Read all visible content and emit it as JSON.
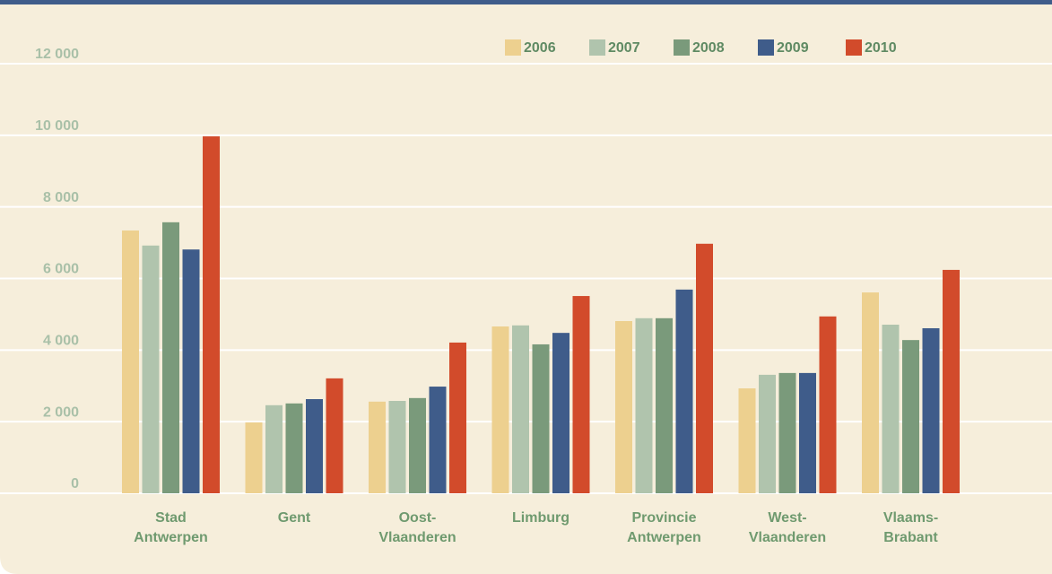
{
  "chart_data": {
    "type": "bar",
    "categories": [
      [
        "Stad",
        "Antwerpen"
      ],
      [
        "Gent"
      ],
      [
        "Oost-",
        "Vlaanderen"
      ],
      [
        "Limburg"
      ],
      [
        "Provincie",
        "Antwerpen"
      ],
      [
        "West-",
        "Vlaanderen"
      ],
      [
        "Vlaams-",
        "Brabant"
      ]
    ],
    "series": [
      {
        "name": "2006",
        "color": "#edd08f",
        "values": [
          7340,
          1980,
          2560,
          4660,
          4810,
          2930,
          5610
        ]
      },
      {
        "name": "2007",
        "color": "#b0c4ad",
        "values": [
          6920,
          2460,
          2580,
          4690,
          4890,
          3310,
          4710
        ]
      },
      {
        "name": "2008",
        "color": "#7a9a7b",
        "values": [
          7570,
          2510,
          2660,
          4160,
          4890,
          3360,
          4280
        ]
      },
      {
        "name": "2009",
        "color": "#3f5c8a",
        "values": [
          6810,
          2630,
          2980,
          4480,
          5690,
          3360,
          4610
        ]
      },
      {
        "name": "2010",
        "color": "#d24b2b",
        "values": [
          9970,
          3210,
          4210,
          5510,
          6970,
          4940,
          6240
        ]
      }
    ],
    "ylim": [
      0,
      12000
    ],
    "yticks": [
      0,
      {
        "value": 2000,
        "label": "2 000"
      },
      {
        "value": 4000,
        "label": "4 000"
      },
      {
        "value": 6000,
        "label": "6 000"
      },
      {
        "value": 8000,
        "label": "8 000"
      },
      {
        "value": 10000,
        "label": "10 000"
      },
      {
        "value": 12000,
        "label": "12 000"
      }
    ],
    "grid": true,
    "legend": "top"
  }
}
